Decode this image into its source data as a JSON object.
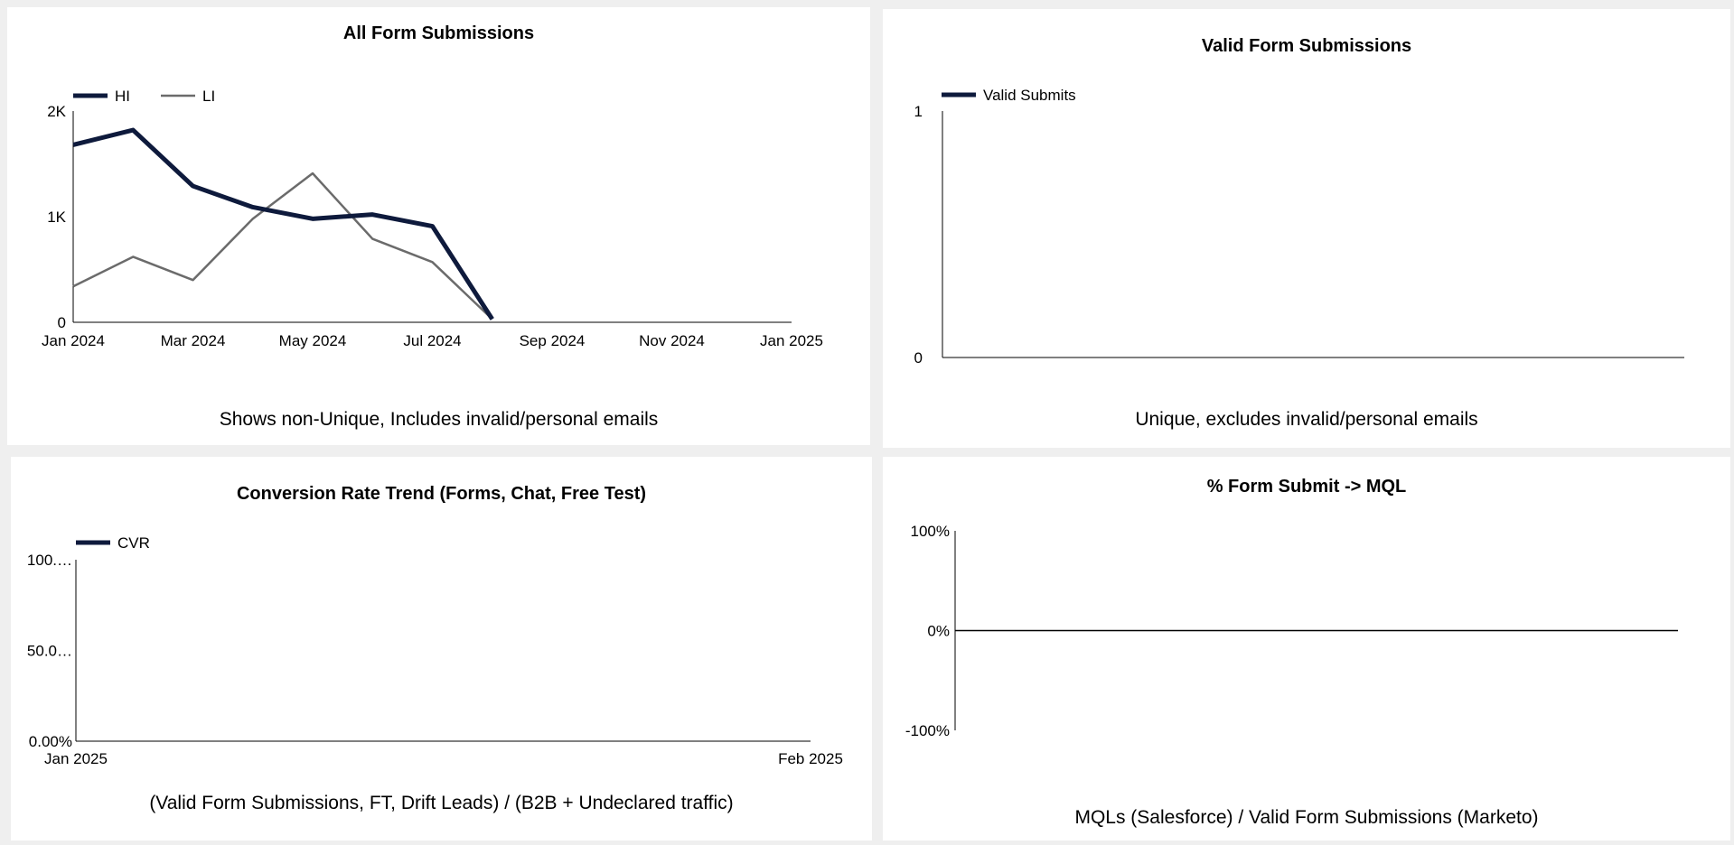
{
  "colors": {
    "navy": "#0e1a3c",
    "gray": "#6b6b6b",
    "axis": "#000000"
  },
  "panels": {
    "all_forms": {
      "title": "All Form Submissions",
      "caption": "Shows non-Unique, Includes invalid/personal emails"
    },
    "valid_forms": {
      "title": "Valid Form Submissions",
      "caption": "Unique, excludes invalid/personal emails"
    },
    "cvr_trend": {
      "title": "Conversion Rate Trend (Forms, Chat, Free Test)",
      "caption": "(Valid Form Submissions, FT, Drift Leads) / (B2B + Undeclared traffic)"
    },
    "form_mql": {
      "title": "% Form Submit -> MQL",
      "caption": "MQLs (Salesforce) / Valid Form Submissions (Marketo)"
    }
  },
  "chart_data": [
    {
      "type": "line",
      "title": "All Form Submissions",
      "x": [
        "2024-01",
        "2024-02",
        "2024-03",
        "2024-04",
        "2024-05",
        "2024-06",
        "2024-07",
        "2024-08"
      ],
      "series": [
        {
          "name": "HI",
          "values": [
            1680,
            1820,
            1290,
            1090,
            980,
            1020,
            910,
            30
          ]
        },
        {
          "name": "LI",
          "values": [
            340,
            620,
            400,
            980,
            1410,
            790,
            570,
            30
          ]
        }
      ],
      "xlim": [
        "2024-01",
        "2025-01"
      ],
      "xticks": [
        "Jan 2024",
        "Mar 2024",
        "May 2024",
        "Jul 2024",
        "Sep 2024",
        "Nov 2024",
        "Jan 2025"
      ],
      "ylim": [
        0,
        2000
      ],
      "yticks": [
        "0",
        "1K",
        "2K"
      ],
      "legend": "top-left",
      "grid": false
    },
    {
      "type": "line",
      "title": "Valid Form Submissions",
      "series": [
        {
          "name": "Valid Submits",
          "values": []
        }
      ],
      "ylim": [
        0,
        1
      ],
      "yticks": [
        "0",
        "1"
      ],
      "legend": "top-left",
      "grid": false
    },
    {
      "type": "line",
      "title": "Conversion Rate Trend (Forms, Chat, Free Test)",
      "series": [
        {
          "name": "CVR",
          "values": []
        }
      ],
      "xticks": [
        "Jan 2025",
        "Feb 2025"
      ],
      "ylim": [
        0,
        100
      ],
      "yticks": [
        "0.00%",
        "50.0…",
        "100.…"
      ],
      "legend": "top-left",
      "grid": false
    },
    {
      "type": "line",
      "title": "% Form Submit -> MQL",
      "series": [],
      "ylim": [
        -100,
        100
      ],
      "yticks": [
        "-100%",
        "0%",
        "100%"
      ],
      "grid": false
    }
  ]
}
